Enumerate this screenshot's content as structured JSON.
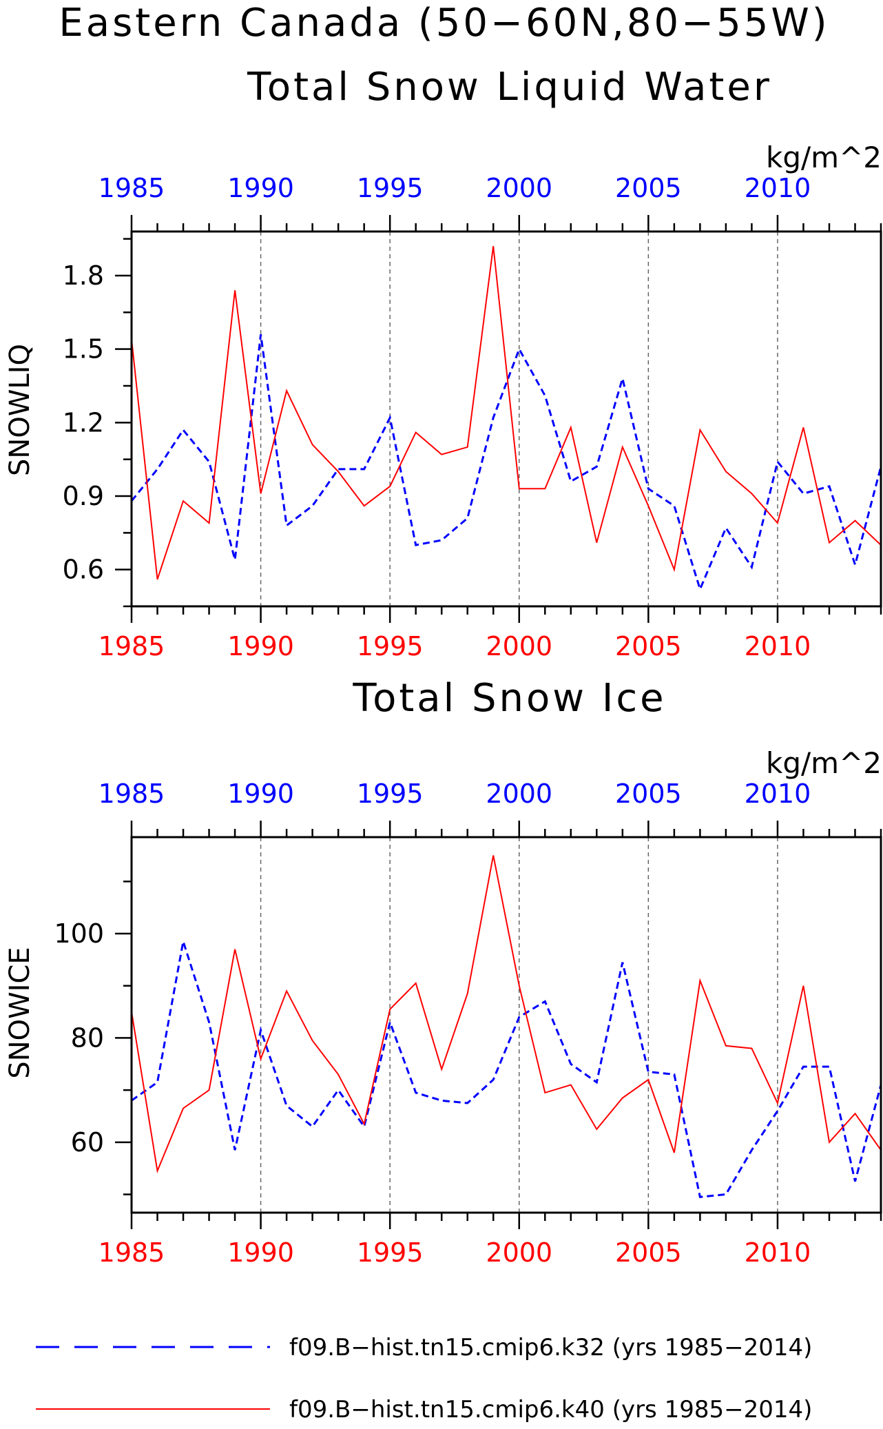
{
  "page_title": "Eastern Canada (50−60N,80−55W)",
  "legend": [
    {
      "label": "f09.B−hist.tn15.cmip6.k32 (yrs 1985−2014)",
      "color": "#0000ff",
      "style": "dashed"
    },
    {
      "label": "f09.B−hist.tn15.cmip6.k40 (yrs 1985−2014)",
      "color": "#ff0000",
      "style": "solid"
    }
  ],
  "chart_data": [
    {
      "type": "line",
      "title": "Total Snow Liquid Water",
      "units": "kg/m^2",
      "ylabel": "SNOWLIQ",
      "xlim": [
        1985,
        2014
      ],
      "ylim": [
        0.45,
        1.98
      ],
      "yticks": [
        0.6,
        0.9,
        1.2,
        1.5,
        1.8
      ],
      "ytick_labels": [
        "0.6",
        "0.9",
        "1.2",
        "1.5",
        "1.8"
      ],
      "xticks": [
        1985,
        1990,
        1995,
        2000,
        2005,
        2010
      ],
      "xtick_labels": [
        "1985",
        "1990",
        "1995",
        "2000",
        "2005",
        "2010"
      ],
      "grid_x": true,
      "x": [
        1985,
        1986,
        1987,
        1988,
        1989,
        1990,
        1991,
        1992,
        1993,
        1994,
        1995,
        1996,
        1997,
        1998,
        1999,
        2000,
        2001,
        2002,
        2003,
        2004,
        2005,
        2006,
        2007,
        2008,
        2009,
        2010,
        2011,
        2012,
        2013,
        2014
      ],
      "series": [
        {
          "name": "f09.B−hist.tn15.cmip6.k32",
          "color": "#0000ff",
          "style": "dashed",
          "values": [
            0.88,
            1.01,
            1.17,
            1.04,
            0.64,
            1.56,
            0.78,
            0.86,
            1.01,
            1.01,
            1.22,
            0.7,
            0.72,
            0.81,
            1.22,
            1.5,
            1.31,
            0.96,
            1.02,
            1.38,
            0.93,
            0.86,
            0.52,
            0.77,
            0.61,
            1.04,
            0.91,
            0.94,
            0.62,
            1.02
          ]
        },
        {
          "name": "f09.B−hist.tn15.cmip6.k40",
          "color": "#ff0000",
          "style": "solid",
          "values": [
            1.54,
            0.56,
            0.88,
            0.79,
            1.74,
            0.91,
            1.33,
            1.11,
            1.0,
            0.86,
            0.94,
            1.16,
            1.07,
            1.1,
            1.92,
            0.93,
            0.93,
            1.18,
            0.71,
            1.1,
            0.86,
            0.6,
            1.17,
            1.0,
            0.91,
            0.79,
            1.18,
            0.71,
            0.8,
            0.7
          ]
        }
      ]
    },
    {
      "type": "line",
      "title": "Total Snow Ice",
      "units": "kg/m^2",
      "ylabel": "SNOWICE",
      "xlim": [
        1985,
        2014
      ],
      "ylim": [
        46.5,
        118.5
      ],
      "yticks": [
        60,
        80,
        100
      ],
      "ytick_labels": [
        "60",
        "80",
        "100"
      ],
      "xticks": [
        1985,
        1990,
        1995,
        2000,
        2005,
        2010
      ],
      "xtick_labels": [
        "1985",
        "1990",
        "1995",
        "2000",
        "2005",
        "2010"
      ],
      "grid_x": true,
      "x": [
        1985,
        1986,
        1987,
        1988,
        1989,
        1990,
        1991,
        1992,
        1993,
        1994,
        1995,
        1996,
        1997,
        1998,
        1999,
        2000,
        2001,
        2002,
        2003,
        2004,
        2005,
        2006,
        2007,
        2008,
        2009,
        2010,
        2011,
        2012,
        2013,
        2014
      ],
      "series": [
        {
          "name": "f09.B−hist.tn15.cmip6.k32",
          "color": "#0000ff",
          "style": "dashed",
          "values": [
            68,
            71.5,
            98.5,
            83,
            58.5,
            81.5,
            67,
            63,
            70,
            63,
            83,
            69.5,
            68,
            67.5,
            72,
            84,
            87,
            75,
            71.5,
            94.5,
            73.5,
            73,
            49.5,
            50,
            58.5,
            66,
            74.5,
            74.5,
            52.5,
            71
          ]
        },
        {
          "name": "f09.B−hist.tn15.cmip6.k40",
          "color": "#ff0000",
          "style": "solid",
          "values": [
            85,
            54.5,
            66.5,
            70,
            97,
            76,
            89,
            79.5,
            73,
            63.5,
            85.5,
            90.5,
            74,
            88.5,
            115,
            90,
            69.5,
            71,
            62.5,
            68.5,
            72,
            58,
            91,
            78.5,
            78,
            67.5,
            90,
            60,
            65.5,
            58.5
          ]
        }
      ]
    }
  ]
}
